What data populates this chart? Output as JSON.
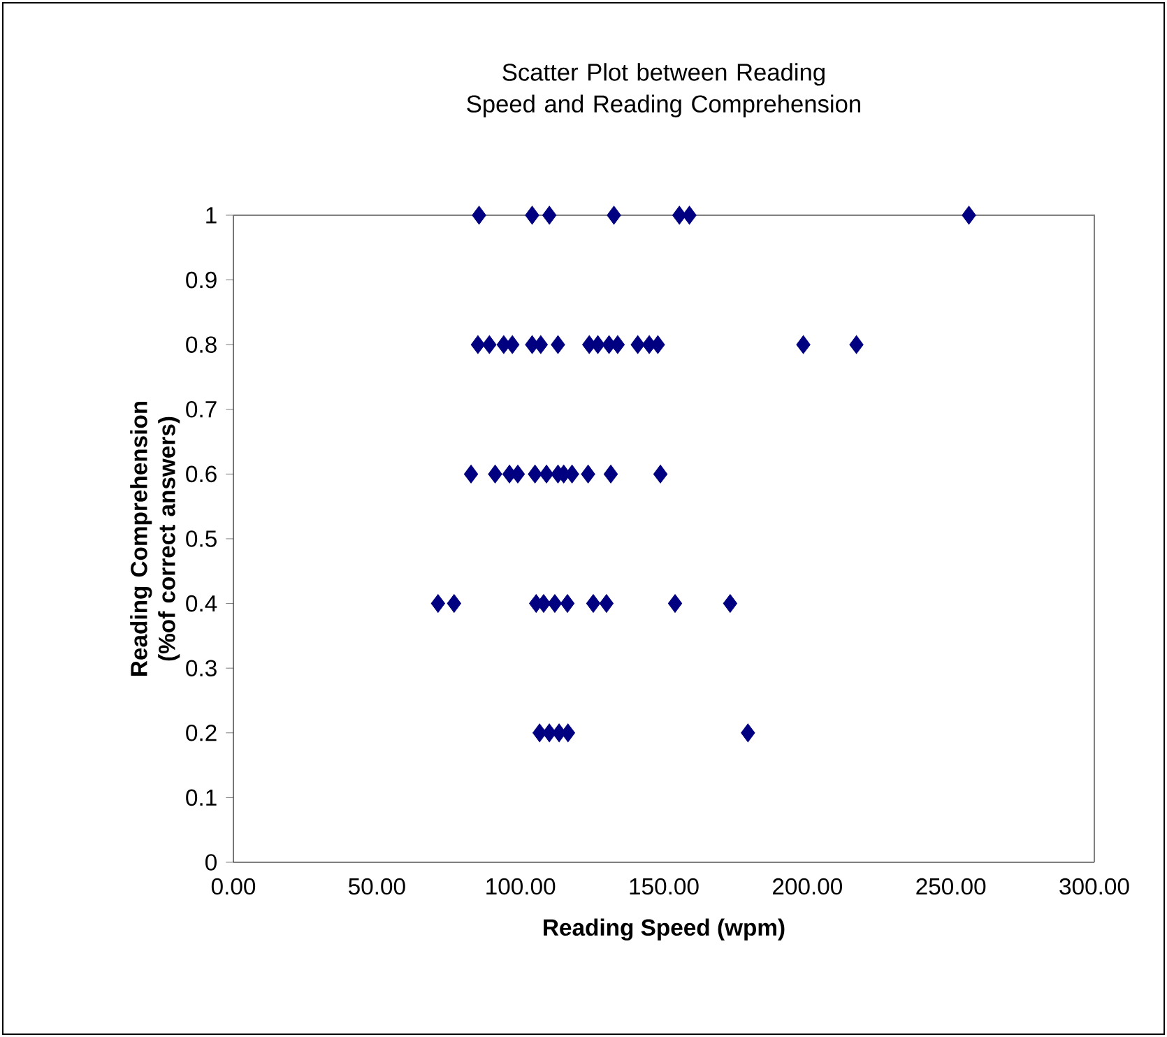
{
  "chart_data": {
    "type": "scatter",
    "title": "Scatter Plot between Reading Speed and Reading Comprehension",
    "xlabel": "Reading Speed (wpm)",
    "ylabel": "Reading Comprehension (%of correct answers)",
    "x": [
      85.6,
      104.1,
      110.1,
      132.6,
      155.4,
      158.9,
      256.3,
      85.2,
      89.2,
      94.2,
      97.2,
      104.1,
      107.1,
      113.1,
      124.0,
      127.0,
      130.9,
      133.9,
      140.9,
      144.9,
      147.9,
      198.6,
      217.1,
      82.8,
      91.2,
      96.2,
      99.1,
      105.1,
      109.1,
      113.1,
      115.1,
      118.0,
      123.6,
      131.5,
      148.8,
      71.3,
      76.9,
      105.5,
      108.1,
      112.0,
      116.4,
      125.4,
      130.0,
      153.9,
      173.1,
      106.7,
      110.1,
      113.5,
      116.6,
      179.3
    ],
    "values": [
      1,
      1,
      1,
      1,
      1,
      1,
      1,
      0.8,
      0.8,
      0.8,
      0.8,
      0.8,
      0.8,
      0.8,
      0.8,
      0.8,
      0.8,
      0.8,
      0.8,
      0.8,
      0.8,
      0.8,
      0.8,
      0.6,
      0.6,
      0.6,
      0.6,
      0.6,
      0.6,
      0.6,
      0.6,
      0.6,
      0.6,
      0.6,
      0.6,
      0.4,
      0.4,
      0.4,
      0.4,
      0.4,
      0.4,
      0.4,
      0.4,
      0.4,
      0.4,
      0.2,
      0.2,
      0.2,
      0.2,
      0.2
    ],
    "color": "#000080",
    "marker": "diamond",
    "grid": false,
    "xlim": [
      0,
      300
    ],
    "ylim": [
      0,
      1
    ],
    "xticks": [
      {
        "value": 0,
        "label": "0.00"
      },
      {
        "value": 50,
        "label": "50.00"
      },
      {
        "value": 100,
        "label": "100.00"
      },
      {
        "value": 150,
        "label": "150.00"
      },
      {
        "value": 200,
        "label": "200.00"
      },
      {
        "value": 250,
        "label": "250.00"
      },
      {
        "value": 300,
        "label": "300.00"
      }
    ],
    "yticks": [
      0,
      0.1,
      0.2,
      0.3,
      0.4,
      0.5,
      0.6,
      0.7,
      0.8,
      0.9,
      1
    ]
  }
}
